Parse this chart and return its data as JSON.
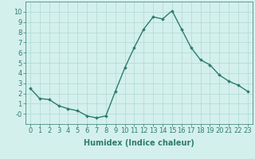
{
  "x": [
    0,
    1,
    2,
    3,
    4,
    5,
    6,
    7,
    8,
    9,
    10,
    11,
    12,
    13,
    14,
    15,
    16,
    17,
    18,
    19,
    20,
    21,
    22,
    23
  ],
  "y": [
    2.5,
    1.5,
    1.4,
    0.8,
    0.5,
    0.3,
    -0.2,
    -0.4,
    -0.2,
    2.2,
    4.5,
    6.5,
    8.3,
    9.5,
    9.3,
    10.1,
    8.3,
    6.5,
    5.3,
    4.8,
    3.8,
    3.2,
    2.8,
    2.2
  ],
  "line_color": "#2d7d6e",
  "marker": "D",
  "marker_size": 1.8,
  "line_width": 1.0,
  "bg_color": "#d4f0ec",
  "grid_color": "#b0d8d2",
  "xlabel": "Humidex (Indice chaleur)",
  "xlabel_fontsize": 7,
  "tick_fontsize": 6,
  "ylim": [
    -1,
    11
  ],
  "xlim": [
    -0.5,
    23.5
  ],
  "yticks": [
    0,
    1,
    2,
    3,
    4,
    5,
    6,
    7,
    8,
    9,
    10
  ],
  "xticks": [
    0,
    1,
    2,
    3,
    4,
    5,
    6,
    7,
    8,
    9,
    10,
    11,
    12,
    13,
    14,
    15,
    16,
    17,
    18,
    19,
    20,
    21,
    22,
    23
  ]
}
